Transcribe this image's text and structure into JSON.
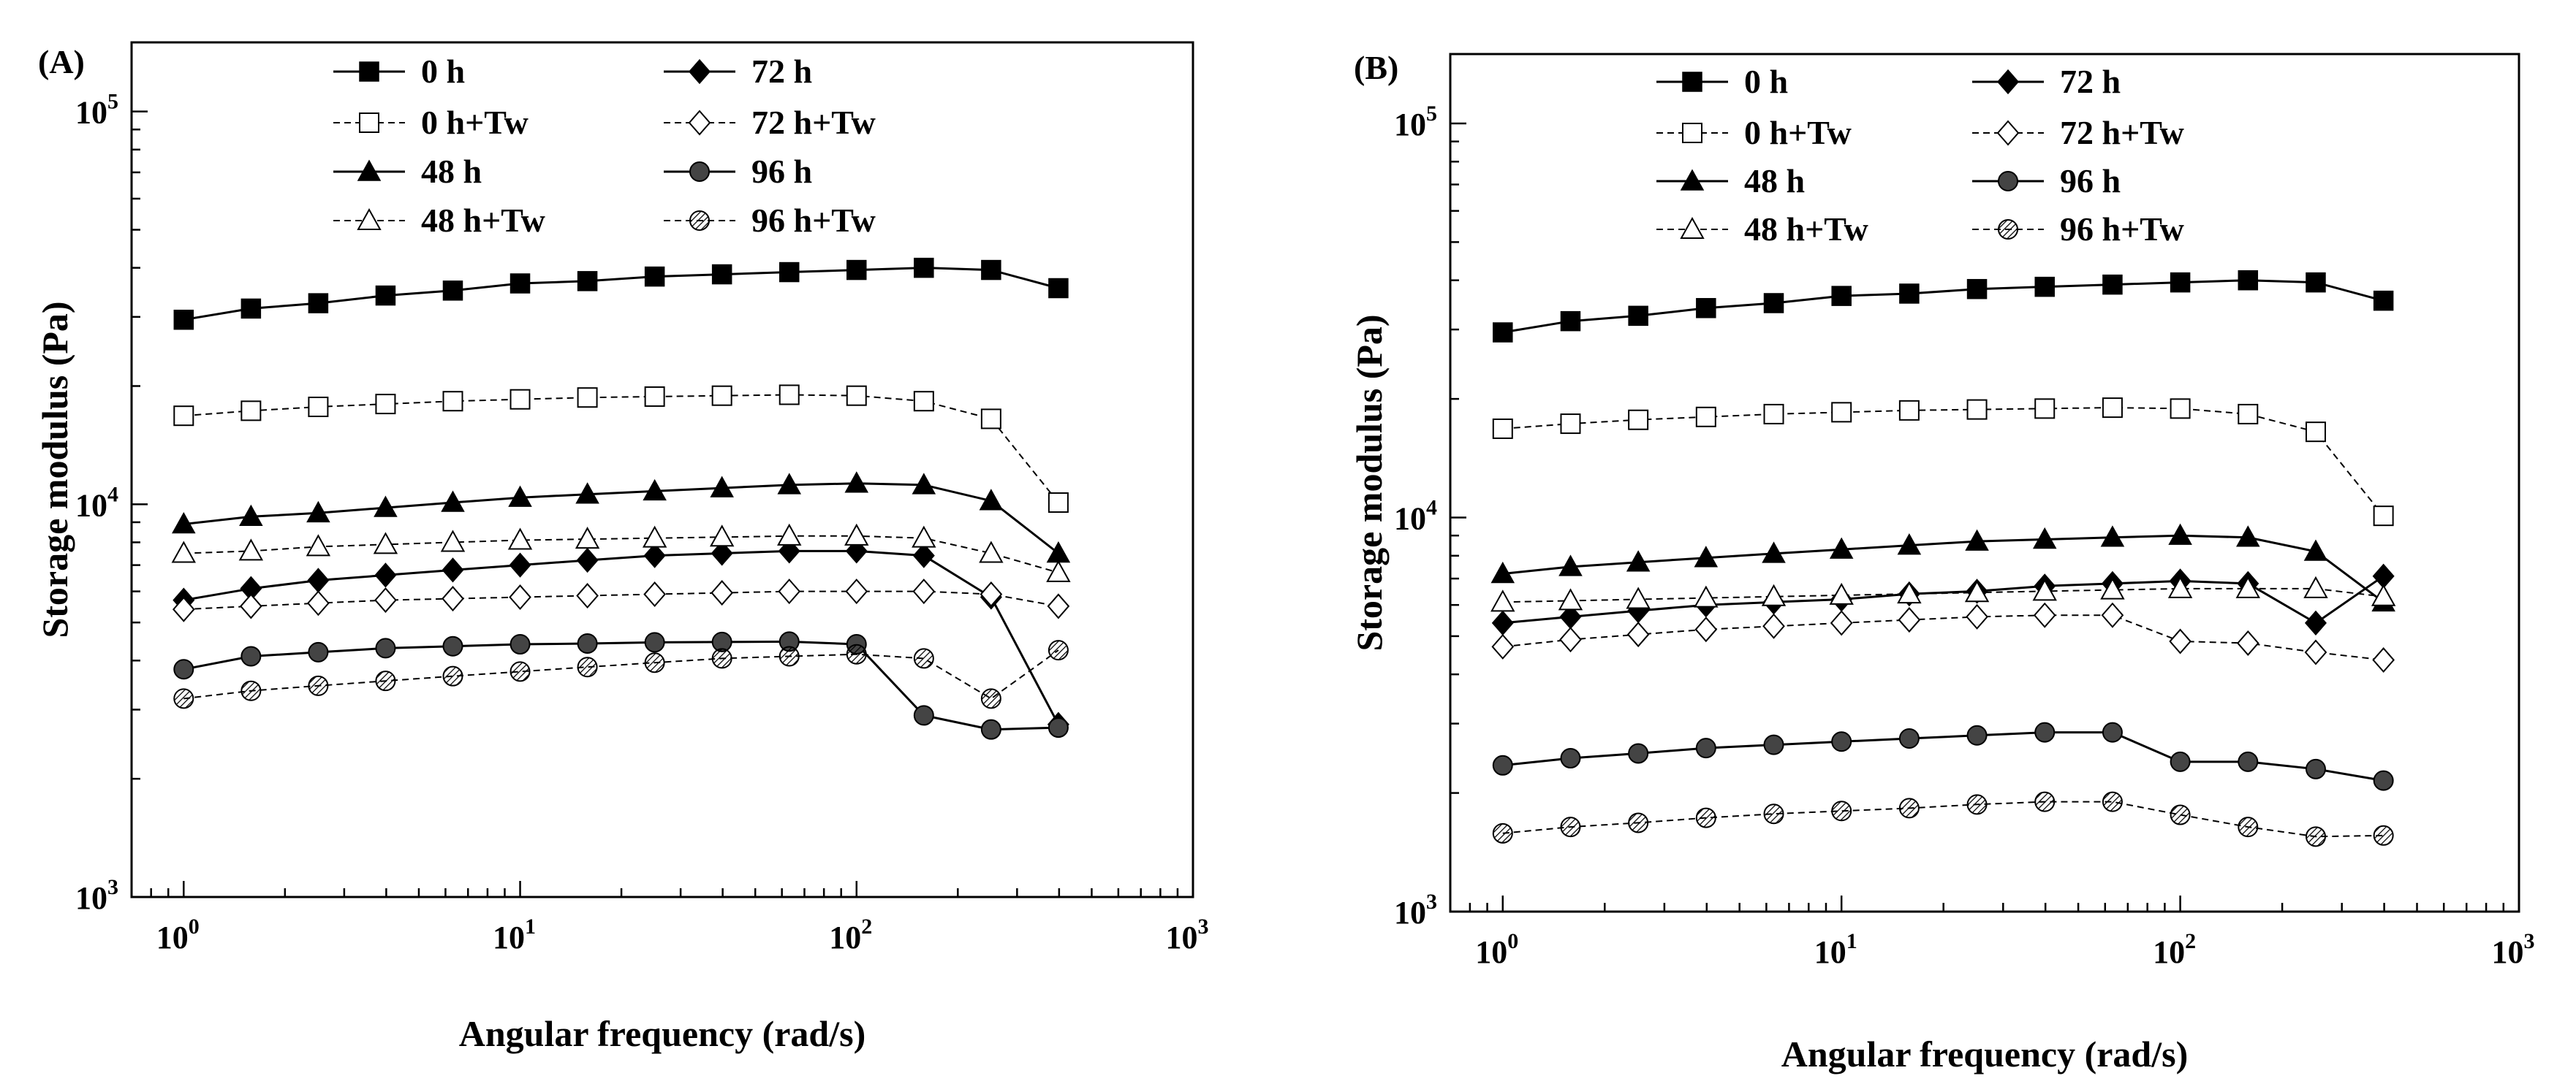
{
  "chart_data": [
    {
      "type": "line",
      "panel_label": "(A)",
      "xscale": "log",
      "yscale": "log",
      "xlabel": "Angular frequency (rad/s)",
      "ylabel": "Storage modulus (Pa)",
      "xlim": [
        0.7,
        1000
      ],
      "ylim": [
        1000,
        150000
      ],
      "xticks": [
        {
          "value": 1,
          "base": "10",
          "exp": "0"
        },
        {
          "value": 10,
          "base": "10",
          "exp": "1"
        },
        {
          "value": 100,
          "base": "10",
          "exp": "2"
        },
        {
          "value": 1000,
          "base": "10",
          "exp": "3"
        }
      ],
      "yticks": [
        {
          "value": 1000,
          "base": "10",
          "exp": "3"
        },
        {
          "value": 10000,
          "base": "10",
          "exp": "4"
        },
        {
          "value": 100000,
          "base": "10",
          "exp": "5"
        }
      ],
      "x": [
        1,
        1.585,
        2.512,
        3.981,
        6.31,
        10,
        15.85,
        25.12,
        39.81,
        63.1,
        100,
        158.5,
        251.2,
        398.1
      ],
      "series": [
        {
          "name": "0 h",
          "marker": "square-filled",
          "dash": "solid",
          "values": [
            29500,
            31500,
            32500,
            34000,
            35000,
            36500,
            37000,
            38000,
            38500,
            39000,
            39500,
            40000,
            39500,
            35500
          ]
        },
        {
          "name": "72 h",
          "marker": "diamond-filled",
          "dash": "solid",
          "values": [
            5700,
            6100,
            6400,
            6600,
            6800,
            7000,
            7200,
            7400,
            7500,
            7600,
            7600,
            7400,
            5800,
            2750
          ]
        },
        {
          "name": "0 h+Tw",
          "marker": "square-open",
          "dash": "dashed",
          "values": [
            16800,
            17300,
            17700,
            18000,
            18300,
            18500,
            18700,
            18800,
            18900,
            19000,
            18900,
            18300,
            16500,
            10100
          ]
        },
        {
          "name": "72 h+Tw",
          "marker": "diamond-open",
          "dash": "dashed",
          "values": [
            5400,
            5500,
            5600,
            5700,
            5750,
            5800,
            5850,
            5900,
            5950,
            6000,
            6000,
            6000,
            5900,
            5500
          ]
        },
        {
          "name": "48 h",
          "marker": "triangle-filled",
          "dash": "solid",
          "values": [
            8900,
            9300,
            9500,
            9800,
            10100,
            10400,
            10600,
            10800,
            11000,
            11200,
            11300,
            11200,
            10200,
            7500
          ]
        },
        {
          "name": "96 h",
          "marker": "circle-half",
          "dash": "solid",
          "values": [
            3800,
            4100,
            4200,
            4300,
            4350,
            4400,
            4420,
            4450,
            4460,
            4470,
            4400,
            2900,
            2670,
            2700
          ]
        },
        {
          "name": "48 h+Tw",
          "marker": "triangle-open",
          "dash": "dashed",
          "values": [
            7500,
            7600,
            7800,
            7900,
            8000,
            8100,
            8150,
            8200,
            8250,
            8300,
            8300,
            8200,
            7500,
            6700
          ]
        },
        {
          "name": "96 h+Tw",
          "marker": "circle-open-hatched",
          "dash": "dashed",
          "values": [
            3200,
            3350,
            3450,
            3550,
            3650,
            3750,
            3850,
            3950,
            4050,
            4100,
            4150,
            4050,
            3200,
            4250
          ]
        }
      ]
    },
    {
      "type": "line",
      "panel_label": "(B)",
      "xscale": "log",
      "yscale": "log",
      "xlabel": "Angular frequency (rad/s)",
      "ylabel": "Storage modulus (Pa)",
      "xlim": [
        0.7,
        1000
      ],
      "ylim": [
        1000,
        150000
      ],
      "xticks": [
        {
          "value": 1,
          "base": "10",
          "exp": "0"
        },
        {
          "value": 10,
          "base": "10",
          "exp": "1"
        },
        {
          "value": 100,
          "base": "10",
          "exp": "2"
        },
        {
          "value": 1000,
          "base": "10",
          "exp": "3"
        }
      ],
      "yticks": [
        {
          "value": 1000,
          "base": "10",
          "exp": "3"
        },
        {
          "value": 10000,
          "base": "10",
          "exp": "4"
        },
        {
          "value": 100000,
          "base": "10",
          "exp": "5"
        }
      ],
      "x": [
        1,
        1.585,
        2.512,
        3.981,
        6.31,
        10,
        15.85,
        25.12,
        39.81,
        63.1,
        100,
        158.5,
        251.2,
        398.1
      ],
      "series": [
        {
          "name": "0 h",
          "marker": "square-filled",
          "dash": "solid",
          "values": [
            29500,
            31500,
            32500,
            34000,
            35000,
            36500,
            37000,
            38000,
            38500,
            39000,
            39500,
            40000,
            39500,
            35500
          ]
        },
        {
          "name": "72 h",
          "marker": "diamond-filled",
          "dash": "solid",
          "values": [
            5400,
            5600,
            5800,
            6000,
            6100,
            6200,
            6400,
            6500,
            6700,
            6800,
            6900,
            6800,
            5400,
            7100
          ]
        },
        {
          "name": "0 h+Tw",
          "marker": "square-open",
          "dash": "dashed",
          "values": [
            16800,
            17300,
            17700,
            18000,
            18300,
            18500,
            18700,
            18800,
            18900,
            19000,
            18900,
            18300,
            16500,
            10100
          ]
        },
        {
          "name": "72 h+Tw",
          "marker": "diamond-open",
          "dash": "dashed",
          "values": [
            4700,
            4900,
            5050,
            5200,
            5300,
            5400,
            5500,
            5600,
            5650,
            5650,
            4850,
            4800,
            4550,
            4350
          ]
        },
        {
          "name": "48 h",
          "marker": "triangle-filled",
          "dash": "solid",
          "values": [
            7200,
            7500,
            7700,
            7900,
            8100,
            8300,
            8500,
            8700,
            8800,
            8900,
            9000,
            8900,
            8200,
            6100
          ]
        },
        {
          "name": "96 h",
          "marker": "circle-half",
          "dash": "solid",
          "values": [
            2350,
            2450,
            2520,
            2600,
            2650,
            2700,
            2750,
            2800,
            2850,
            2850,
            2400,
            2400,
            2300,
            2150
          ]
        },
        {
          "name": "48 h+Tw",
          "marker": "triangle-open",
          "dash": "dashed",
          "values": [
            6100,
            6150,
            6200,
            6250,
            6300,
            6350,
            6400,
            6450,
            6500,
            6550,
            6600,
            6600,
            6600,
            6300
          ]
        },
        {
          "name": "96 h+Tw",
          "marker": "circle-open-hatched",
          "dash": "dashed",
          "values": [
            1580,
            1640,
            1680,
            1730,
            1770,
            1800,
            1830,
            1870,
            1900,
            1900,
            1760,
            1640,
            1550,
            1560
          ]
        }
      ]
    }
  ]
}
